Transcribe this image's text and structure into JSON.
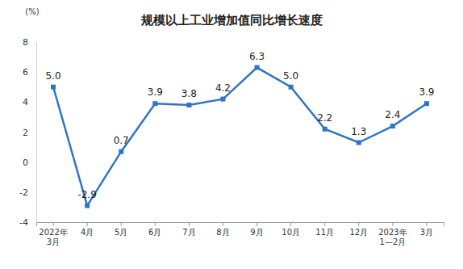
{
  "chart_data": {
    "type": "line",
    "title": "规模以上工业增加值同比增长速度",
    "y_label": "(%)",
    "categories": [
      "2022年\n3月",
      "4月",
      "5月",
      "6月",
      "7月",
      "8月",
      "9月",
      "10月",
      "11月",
      "12月",
      "2023年\n1—2月",
      "3月"
    ],
    "values": [
      5.0,
      -2.9,
      0.7,
      3.9,
      3.8,
      4.2,
      6.3,
      5.0,
      2.2,
      1.3,
      2.4,
      3.9
    ],
    "value_labels": [
      "5.0",
      "-2.9",
      "0.7",
      "3.9",
      "3.8",
      "4.2",
      "6.3",
      "5.0",
      "2.2",
      "1.3",
      "2.4",
      "3.9"
    ],
    "color": "#2e75c6",
    "marker": "square",
    "data_labels": true,
    "grid": false,
    "ylim": [
      -4,
      8
    ],
    "yticks": [
      -4,
      -2,
      0,
      2,
      4,
      6,
      8
    ]
  }
}
